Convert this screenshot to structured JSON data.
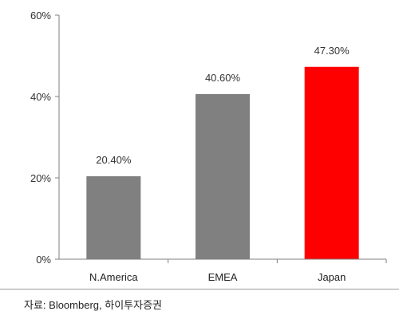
{
  "chart_data": {
    "type": "bar",
    "categories": [
      "N.America",
      "EMEA",
      "Japan"
    ],
    "values": [
      20.4,
      40.6,
      47.3
    ],
    "data_labels": [
      "20.40%",
      "40.60%",
      "47.30%"
    ],
    "ylim": [
      0,
      60
    ],
    "y_ticks": [
      0,
      20,
      40,
      60
    ],
    "y_tick_labels": [
      "0%",
      "20%",
      "40%",
      "60%"
    ],
    "grid": false,
    "colors": [
      "#808080",
      "#808080",
      "#ff0000"
    ]
  },
  "source_text": "자료: Bloomberg, 하이투자증권"
}
